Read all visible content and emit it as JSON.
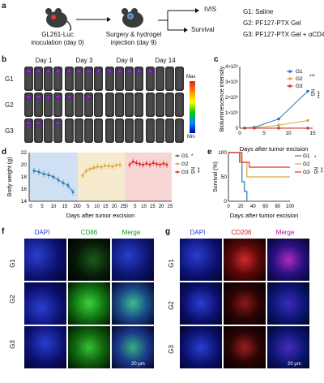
{
  "panel_labels": {
    "a": "a",
    "b": "b",
    "c": "c",
    "d": "d",
    "e": "e",
    "f": "f",
    "g": "g"
  },
  "panel_a": {
    "step1": "GL261-Luc",
    "step1_sub": "inoculation (day 0)",
    "step2": "Surgery & hydrogel",
    "step2_sub": "injection (day 9)",
    "out1": "IVIS",
    "out2": "Survival",
    "groups": [
      "G1: Saline",
      "G2: PF127-PTX Gel",
      "G3: PF127-PTX Gel + αCD47"
    ]
  },
  "panel_b": {
    "days": [
      "Day 1",
      "Day 3",
      "Day 8",
      "Day 14"
    ],
    "rows": [
      "G1",
      "G2",
      "G3"
    ],
    "scale_max": "Max",
    "scale_min": "Min"
  },
  "chart_data": [
    {
      "type": "line",
      "panel": "c",
      "ylabel": "Bioluminescence intensity",
      "xlabel": "Days after tumor excision",
      "x": [
        1,
        3,
        8,
        14
      ],
      "xlim": [
        0,
        15
      ],
      "xticks": [
        0,
        5,
        10,
        15
      ],
      "ylim": [
        0,
        4000000
      ],
      "yticks": [
        "0",
        "1×10⁶",
        "2×10⁶",
        "3×10⁶",
        "4×10⁶"
      ],
      "series": [
        {
          "name": "G1",
          "color": "#2a7ab8",
          "values": [
            20000,
            60000,
            600000,
            2400000
          ]
        },
        {
          "name": "G2",
          "color": "#e0a83a",
          "values": [
            10000,
            30000,
            200000,
            500000
          ]
        },
        {
          "name": "G3",
          "color": "#e0322b",
          "values": [
            5000,
            5000,
            5000,
            5000
          ]
        }
      ],
      "sig": [
        {
          "label": "***"
        },
        {
          "label": "NS"
        },
        {
          "label": "****"
        }
      ]
    },
    {
      "type": "line",
      "panel": "d",
      "ylabel": "Body weight (g)",
      "xlabel": "Days after tumor excision",
      "ylim": [
        14,
        22
      ],
      "yticks": [
        14,
        16,
        18,
        20,
        22
      ],
      "xticks": [
        "0",
        "5",
        "10",
        "15",
        "20",
        "0",
        "5",
        "10",
        "15",
        "20",
        "25",
        "0",
        "5",
        "10",
        "15",
        "20",
        "25"
      ],
      "series": [
        {
          "name": "G1",
          "color": "#2a7ab8",
          "values": [
            19,
            18.8,
            18.5,
            18.3,
            18,
            17.5,
            17,
            16.6,
            15.5
          ]
        },
        {
          "name": "G2",
          "color": "#e0a83a",
          "values": [
            18.2,
            19,
            19.3,
            19.5,
            19.7,
            19.6,
            19.8,
            19.8,
            19.7,
            19.9,
            20
          ]
        },
        {
          "name": "G3",
          "color": "#e0322b",
          "values": [
            20,
            20.5,
            20.3,
            20.1,
            20,
            20.2,
            20,
            20.3,
            20.1,
            20,
            20.2,
            20
          ]
        }
      ],
      "sig": [
        {
          "label": "*"
        },
        {
          "label": "NS"
        },
        {
          "label": "***"
        }
      ]
    },
    {
      "type": "line",
      "panel": "e",
      "ylabel": "Survival (%)",
      "xlabel": "Days after tumor excision",
      "xlim": [
        0,
        100
      ],
      "xticks": [
        0,
        20,
        40,
        60,
        80,
        100
      ],
      "ylim": [
        0,
        100
      ],
      "yticks": [
        0,
        50,
        100
      ],
      "series": [
        {
          "name": "G1",
          "color": "#2a7ab8",
          "x": [
            0,
            18,
            18,
            22,
            22,
            26,
            26,
            30,
            30
          ],
          "values": [
            100,
            100,
            80,
            80,
            40,
            40,
            20,
            20,
            0
          ]
        },
        {
          "name": "G2",
          "color": "#e0a83a",
          "x": [
            0,
            20,
            20,
            30,
            30,
            100
          ],
          "values": [
            100,
            100,
            80,
            80,
            50,
            50
          ]
        },
        {
          "name": "G3",
          "color": "#e0322b",
          "x": [
            0,
            22,
            22,
            34,
            34,
            100
          ],
          "values": [
            100,
            100,
            80,
            80,
            70,
            70
          ]
        }
      ],
      "sig": [
        {
          "label": "*"
        },
        {
          "label": "NS"
        },
        {
          "label": "***"
        }
      ]
    }
  ],
  "panel_f": {
    "cols": [
      "DAPI",
      "CD86",
      "Merge"
    ],
    "rows": [
      "G1",
      "G2",
      "G3"
    ],
    "scale": "20 μm"
  },
  "panel_g": {
    "cols": [
      "DAPI",
      "CD206",
      "Merge"
    ],
    "rows": [
      "G1",
      "G2",
      "G3"
    ],
    "scale": "20 μm"
  }
}
